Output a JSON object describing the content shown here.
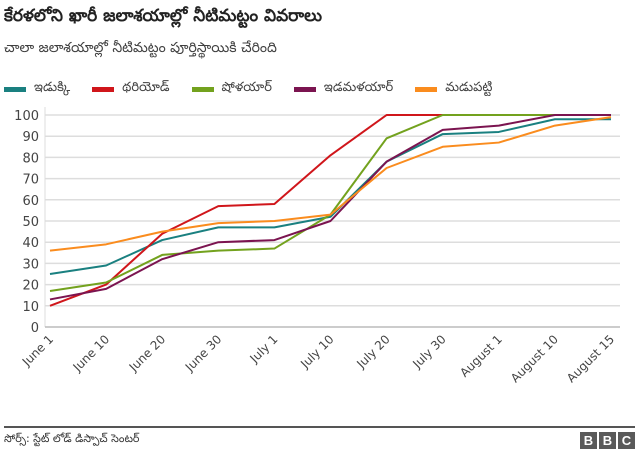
{
  "title": "కేరళలోని ఖారీ జలాశయాల్లో నీటిమట్టం వివరాలు",
  "subtitle": "చాలా జలాశయాల్లో నీటిమట్టం పూర్తిస్థాయికి చేరింది",
  "source": "సోర్స్: స్టేట్ లోడ్ డిస్పాచ్ సెంటర్",
  "logo": "BBC",
  "chart_data": {
    "type": "line",
    "categories": [
      "June 1",
      "June 10",
      "June 20",
      "June 30",
      "July 1",
      "July 10",
      "July 20",
      "July 30",
      "August 1",
      "August 10",
      "August 15"
    ],
    "ylim": [
      0,
      100
    ],
    "yticks": [
      0,
      10,
      20,
      30,
      40,
      50,
      60,
      70,
      80,
      90,
      100
    ],
    "grid": true,
    "legend_placement": "top",
    "series": [
      {
        "name": "ఇడుక్కి",
        "color": "#1a8080",
        "values": [
          25,
          29,
          41,
          47,
          47,
          52,
          78,
          91,
          92,
          98,
          98
        ]
      },
      {
        "name": "థరియోడ్",
        "color": "#d0161b",
        "values": [
          10,
          20,
          44,
          57,
          58,
          81,
          100,
          100,
          100,
          100,
          100
        ]
      },
      {
        "name": "షోళయార్",
        "color": "#73a21e",
        "values": [
          17,
          21,
          34,
          36,
          37,
          53,
          89,
          100,
          100,
          100,
          100
        ]
      },
      {
        "name": "ఇడమళయార్",
        "color": "#7b1450",
        "values": [
          13,
          18,
          32,
          40,
          41,
          50,
          78,
          93,
          95,
          100,
          100
        ]
      },
      {
        "name": "మడుపట్టి",
        "color": "#fa8c1e",
        "values": [
          36,
          39,
          45,
          49,
          50,
          53,
          75,
          85,
          87,
          95,
          99
        ]
      }
    ]
  }
}
